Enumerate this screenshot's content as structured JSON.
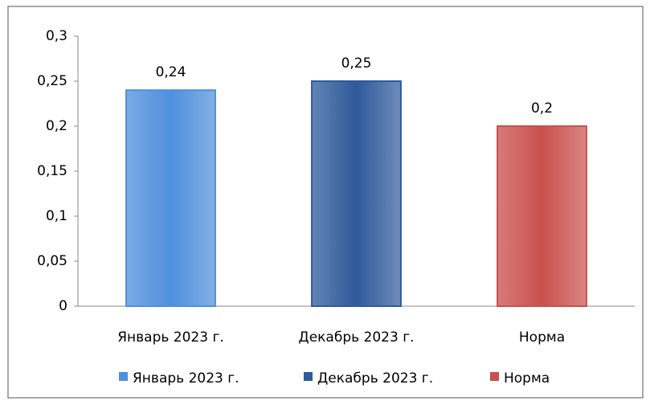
{
  "chart_data": {
    "type": "bar",
    "categories": [
      "Январь 2023 г.",
      "Декабрь 2023 г.",
      "Норма"
    ],
    "values": [
      0.24,
      0.25,
      0.2
    ],
    "value_labels": [
      "0,24",
      "0,25",
      "0,2"
    ],
    "colors": [
      "#4f8fdc",
      "#2f5a9b",
      "#c9504d"
    ],
    "ylim": [
      0,
      0.3
    ],
    "yticks": [
      0,
      {
        "value": 0.05,
        "label": "0,05"
      },
      {
        "value": 0.1,
        "label": "0,1"
      },
      {
        "value": 0.15,
        "label": "0,15"
      },
      {
        "value": 0.2,
        "label": "0,2"
      },
      {
        "value": 0.25,
        "label": "0,25"
      },
      {
        "value": 0.3,
        "label": "0,3"
      }
    ],
    "grid": false,
    "legend": "bottom"
  }
}
